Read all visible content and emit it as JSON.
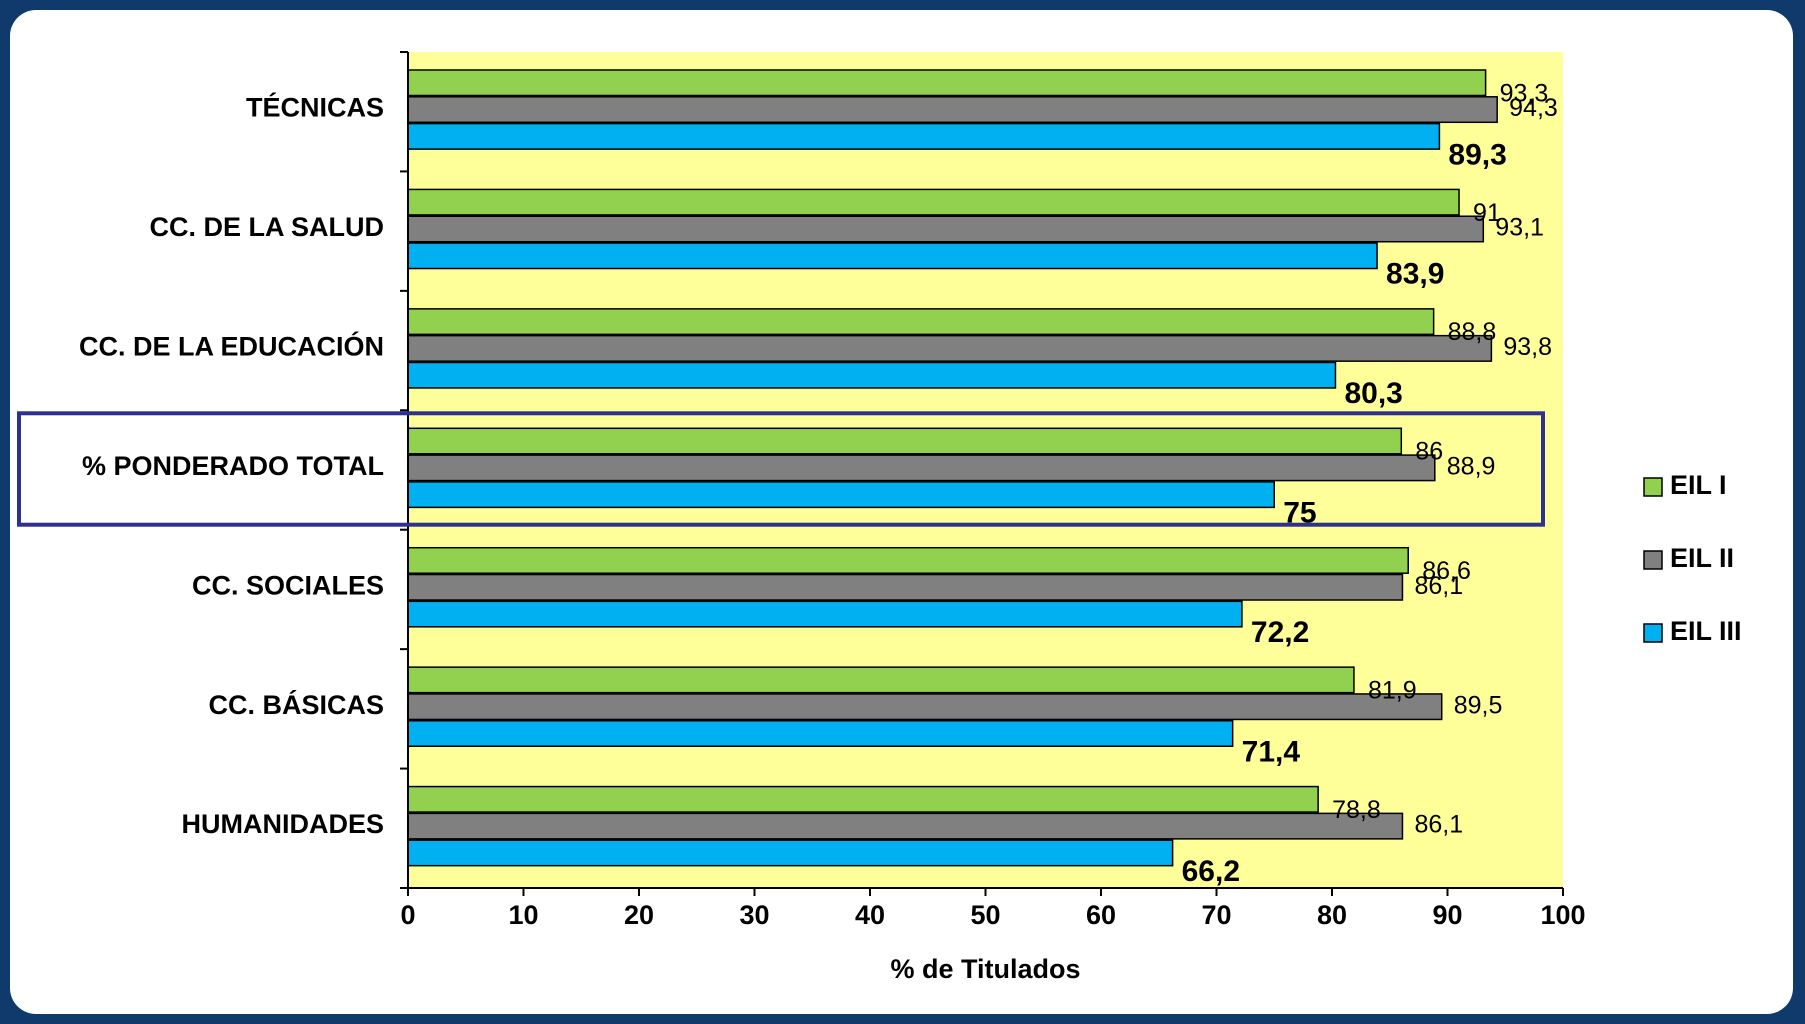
{
  "chart_data": {
    "type": "bar",
    "orientation": "horizontal",
    "categories": [
      "TÉCNICAS",
      "CC. DE LA SALUD",
      "CC. DE LA EDUCACIÓN",
      "% PONDERADO TOTAL",
      "CC. SOCIALES",
      "CC. BÁSICAS",
      "HUMANIDADES"
    ],
    "highlighted_category": "% PONDERADO TOTAL",
    "series": [
      {
        "name": "EIL I",
        "color": "#92d050",
        "values": [
          93.3,
          91,
          88.8,
          86,
          86.6,
          81.9,
          78.8
        ],
        "labels": [
          "93,3",
          "91",
          "88,8",
          "86",
          "86,6",
          "81,9",
          "78,8"
        ]
      },
      {
        "name": "EIL II",
        "color": "#808080",
        "values": [
          94.3,
          93.1,
          93.8,
          88.9,
          86.1,
          89.5,
          86.1
        ],
        "labels": [
          "94,3",
          "93,1",
          "93,8",
          "88,9",
          "86,1",
          "89,5",
          "86,1"
        ]
      },
      {
        "name": "EIL III",
        "color": "#00b0f0",
        "values": [
          89.3,
          83.9,
          80.3,
          75,
          72.2,
          71.4,
          66.2
        ],
        "labels": [
          "89,3",
          "83,9",
          "80,3",
          "75",
          "72,2",
          "71,4",
          "66,2"
        ]
      }
    ],
    "xlabel": "% de Titulados",
    "xlim": [
      0,
      100
    ],
    "xticks": [
      0,
      10,
      20,
      30,
      40,
      50,
      60,
      70,
      80,
      90,
      100
    ],
    "plot_background": "#ffff99",
    "highlight_color": "#2e3192",
    "grid": false,
    "legend_position": "right"
  }
}
